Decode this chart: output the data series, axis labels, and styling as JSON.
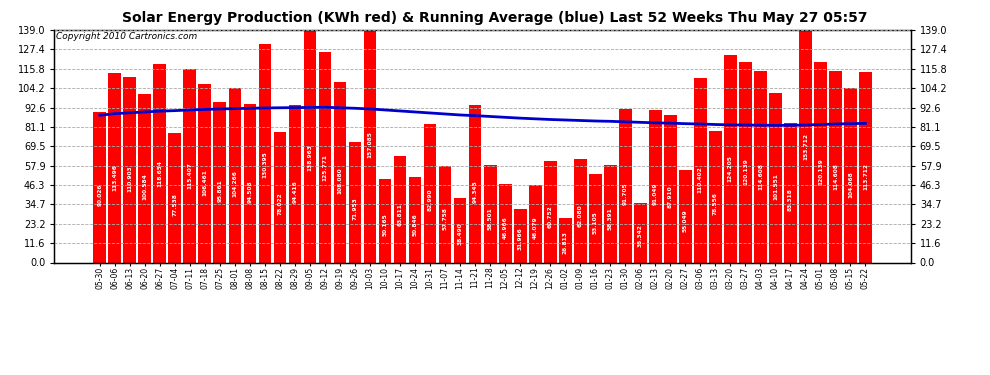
{
  "title": "Solar Energy Production (KWh red) & Running Average (blue) Last 52 Weeks Thu May 27 05:57",
  "copyright": "Copyright 2010 Cartronics.com",
  "bar_color": "#ff0000",
  "avg_line_color": "#0000cc",
  "background_color": "#ffffff",
  "plot_bg_color": "#ffffff",
  "ylim": [
    0,
    139.0
  ],
  "yticks": [
    0.0,
    11.6,
    23.2,
    34.7,
    46.3,
    57.9,
    69.5,
    81.1,
    92.6,
    104.2,
    115.8,
    127.4,
    139.0
  ],
  "categories": [
    "05-30",
    "06-06",
    "06-13",
    "06-20",
    "06-27",
    "07-04",
    "07-11",
    "07-18",
    "07-25",
    "08-01",
    "08-08",
    "08-15",
    "08-22",
    "08-29",
    "09-05",
    "09-12",
    "09-19",
    "09-26",
    "10-03",
    "10-10",
    "10-17",
    "10-24",
    "10-31",
    "11-07",
    "11-14",
    "11-21",
    "11-28",
    "12-05",
    "12-12",
    "12-19",
    "12-26",
    "01-02",
    "01-09",
    "01-16",
    "01-23",
    "01-30",
    "02-06",
    "02-13",
    "02-20",
    "02-27",
    "03-06",
    "03-13",
    "03-20",
    "03-27",
    "04-03",
    "04-10",
    "04-17",
    "04-24",
    "05-01",
    "05-08",
    "05-15",
    "05-22"
  ],
  "values": [
    90.026,
    113.496,
    110.903,
    100.584,
    118.654,
    77.538,
    115.407,
    106.461,
    95.861,
    104.266,
    94.508,
    130.395,
    78.022,
    94.416,
    138.963,
    125.771,
    108.08,
    71.953,
    157.085,
    50.165,
    63.811,
    50.846,
    82.99,
    57.758,
    38.49,
    94.345,
    58.501,
    46.966,
    31.966,
    46.079,
    60.752,
    26.813,
    62.08,
    53.105,
    58.391,
    91.705,
    35.342,
    91.049,
    87.91,
    55.049,
    110.402,
    78.556,
    124.205,
    120.139,
    114.608,
    101.551,
    83.318,
    153.712,
    120.139,
    114.608,
    104.068,
    113.712
  ],
  "running_avg": [
    88.0,
    89.0,
    89.5,
    90.0,
    90.5,
    90.8,
    91.2,
    91.5,
    91.8,
    92.0,
    92.2,
    92.4,
    92.5,
    92.6,
    92.7,
    92.8,
    92.5,
    92.2,
    91.8,
    91.2,
    90.6,
    90.0,
    89.4,
    88.8,
    88.2,
    87.8,
    87.3,
    86.8,
    86.3,
    85.9,
    85.5,
    85.2,
    84.9,
    84.6,
    84.4,
    84.1,
    83.8,
    83.5,
    83.3,
    83.0,
    82.8,
    82.5,
    82.3,
    82.2,
    82.1,
    82.0,
    82.0,
    82.2,
    82.5,
    82.8,
    83.0,
    83.2
  ],
  "grid_color": "#aaaaaa",
  "title_fontsize": 10,
  "ylabel_fontsize": 7,
  "xlabel_fontsize": 5.5,
  "value_label_fontsize": 4.2,
  "copyright_fontsize": 6.5
}
